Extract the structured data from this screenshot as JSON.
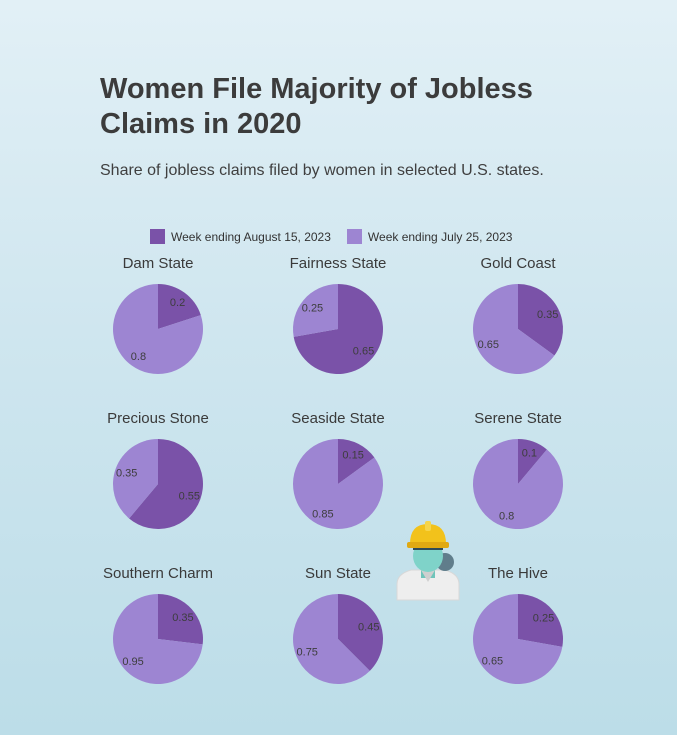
{
  "page": {
    "title": "Women File Majority of Jobless Claims in 2020",
    "subtitle": "Share of jobless claims filed by women in selected U.S. states."
  },
  "legend": [
    {
      "label": "Week ending August 15, 2023",
      "color": "#7a52a8"
    },
    {
      "label": "Week ending July 25, 2023",
      "color": "#9d85d2"
    }
  ],
  "mascot": {
    "icon": "worker-hardhat-icon",
    "helmet_color": "#f2c21b",
    "face_color": "#7fd3c9"
  },
  "chart_data": [
    {
      "type": "pie",
      "title": "Dam State",
      "labels": [
        "Week ending August 15, 2023",
        "Week ending July 25, 2023"
      ],
      "values": [
        0.2,
        0.8
      ],
      "colors": [
        "#7a52a8",
        "#9d85d2"
      ]
    },
    {
      "type": "pie",
      "title": "Fairness State",
      "labels": [
        "Week ending August 15, 2023",
        "Week ending July 25, 2023"
      ],
      "values": [
        0.65,
        0.25
      ],
      "colors": [
        "#7a52a8",
        "#9d85d2"
      ]
    },
    {
      "type": "pie",
      "title": "Gold Coast",
      "labels": [
        "Week ending August 15, 2023",
        "Week ending July 25, 2023"
      ],
      "values": [
        0.35,
        0.65
      ],
      "colors": [
        "#7a52a8",
        "#9d85d2"
      ]
    },
    {
      "type": "pie",
      "title": "Precious Stone",
      "labels": [
        "Week ending August 15, 2023",
        "Week ending July 25, 2023"
      ],
      "values": [
        0.55,
        0.35
      ],
      "colors": [
        "#7a52a8",
        "#9d85d2"
      ]
    },
    {
      "type": "pie",
      "title": "Seaside State",
      "labels": [
        "Week ending August 15, 2023",
        "Week ending July 25, 2023"
      ],
      "values": [
        0.15,
        0.85
      ],
      "colors": [
        "#7a52a8",
        "#9d85d2"
      ]
    },
    {
      "type": "pie",
      "title": "Serene State",
      "labels": [
        "Week ending August 15, 2023",
        "Week ending July 25, 2023"
      ],
      "values": [
        0.1,
        0.8
      ],
      "colors": [
        "#7a52a8",
        "#9d85d2"
      ]
    },
    {
      "type": "pie",
      "title": "Southern Charm",
      "labels": [
        "Week ending August 15, 2023",
        "Week ending July 25, 2023"
      ],
      "values": [
        0.35,
        0.95
      ],
      "colors": [
        "#7a52a8",
        "#9d85d2"
      ]
    },
    {
      "type": "pie",
      "title": "Sun State",
      "labels": [
        "Week ending August 15, 2023",
        "Week ending July 25, 2023"
      ],
      "values": [
        0.45,
        0.75
      ],
      "colors": [
        "#7a52a8",
        "#9d85d2"
      ]
    },
    {
      "type": "pie",
      "title": "The Hive",
      "labels": [
        "Week ending August 15, 2023",
        "Week ending July 25, 2023"
      ],
      "values": [
        0.25,
        0.65
      ],
      "colors": [
        "#7a52a8",
        "#9d85d2"
      ]
    }
  ]
}
